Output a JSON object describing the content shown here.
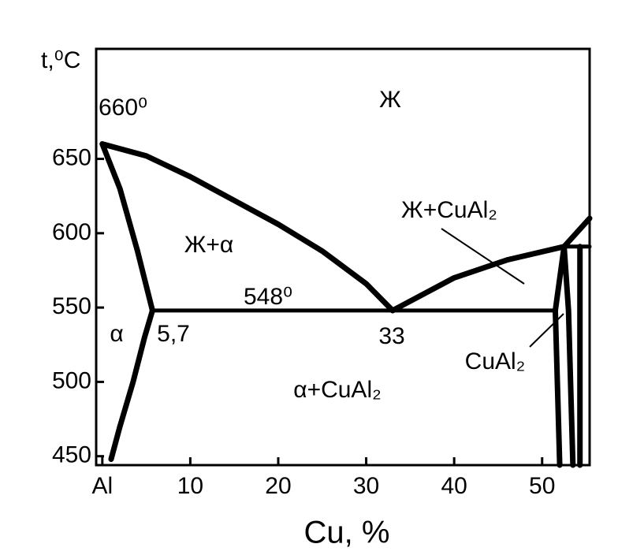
{
  "chart_data": {
    "type": "line",
    "x_label": "Cu, %",
    "y_label": "t,⁰C",
    "xlim": [
      -0.7,
      55.4
    ],
    "ylim": [
      444,
      724
    ],
    "xticks": [
      {
        "value": 0,
        "label": "Al"
      },
      10,
      20,
      30,
      40,
      50
    ],
    "yticks": [
      450,
      500,
      550,
      600,
      650
    ],
    "series": [
      {
        "color": "#000000",
        "x": [
          0,
          5,
          10,
          15,
          20,
          25,
          30,
          33
        ],
        "values": [
          660,
          652,
          638,
          622,
          606,
          588,
          566,
          548
        ]
      },
      {
        "color": "#000000",
        "x": [
          0,
          2,
          4,
          5.7
        ],
        "values": [
          660,
          630,
          588,
          548
        ]
      },
      {
        "color": "#000000",
        "x": [
          5.7,
          4.8,
          3.5,
          2,
          1
        ],
        "values": [
          548,
          530,
          500,
          470,
          448
        ]
      },
      {
        "color": "#000000",
        "x": [
          5.7,
          51.5
        ],
        "values": [
          548,
          548
        ]
      },
      {
        "color": "#000000",
        "x": [
          33,
          40,
          46,
          52.5,
          55.4
        ],
        "values": [
          548,
          570,
          582,
          591,
          610
        ]
      },
      {
        "color": "#000000",
        "x": [
          52,
          51.5,
          52.5
        ],
        "values": [
          444,
          548,
          591
        ]
      },
      {
        "color": "#000000",
        "x": [
          53.5,
          53,
          52.5
        ],
        "values": [
          444,
          548,
          591
        ]
      },
      {
        "color": "#000000",
        "x": [
          54.3,
          54.3
        ],
        "values": [
          444,
          591
        ]
      },
      {
        "color": "#000000",
        "x": [
          52.5,
          55.4
        ],
        "values": [
          591,
          591
        ]
      }
    ],
    "annotations": [
      "660⁰",
      "Ж",
      "Ж+CuAl₂",
      "Ж+α",
      "548⁰",
      "α",
      "5,7",
      "33",
      "CuAl₂",
      "α+CuAl₂"
    ]
  }
}
